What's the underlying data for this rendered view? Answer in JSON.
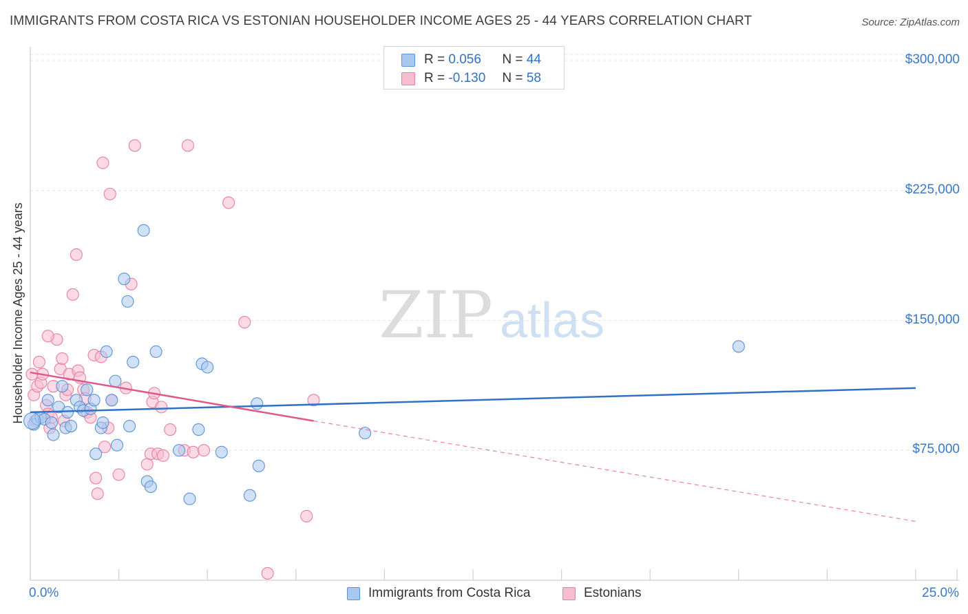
{
  "header": {
    "title": "IMMIGRANTS FROM COSTA RICA VS ESTONIAN HOUSEHOLDER INCOME AGES 25 - 44 YEARS CORRELATION CHART",
    "source": "Source: ZipAtlas.com"
  },
  "watermark": {
    "zip": "ZIP",
    "atlas": "atlas"
  },
  "stats_legend": {
    "rows": [
      {
        "r_label": "R =",
        "r_value": "0.056",
        "n_label": "N =",
        "n_value": "44",
        "color": "#a9c8f0",
        "border": "#5b93d6"
      },
      {
        "r_label": "R =",
        "r_value": "-0.130",
        "n_label": "N =",
        "n_value": "58",
        "color": "#f7bccf",
        "border": "#e87fa2"
      }
    ]
  },
  "chart_data": {
    "type": "scatter",
    "title": "IMMIGRANTS FROM COSTA RICA VS ESTONIAN HOUSEHOLDER INCOME AGES 25 - 44 YEARS CORRELATION CHART",
    "xlabel": "",
    "ylabel": "Householder Income Ages 25 - 44 years",
    "xlim": [
      0,
      25
    ],
    "ylim": [
      0,
      308000
    ],
    "x_tick_labels": [
      "0.0%",
      "25.0%"
    ],
    "y_ticks": [
      75000,
      150000,
      225000,
      300000
    ],
    "y_tick_labels": [
      "$75,000",
      "$150,000",
      "$225,000",
      "$300,000"
    ],
    "grid": "horizontal dashed",
    "legend_position": "bottom",
    "series": [
      {
        "name": "Immigrants from Costa Rica",
        "color": "#a9c8f0",
        "stroke": "#5b93d6",
        "trend": {
          "x": [
            0,
            25
          ],
          "y": [
            97000,
            111000
          ],
          "color": "#2f72c4",
          "style": "solid"
        },
        "points": [
          [
            0.1,
            90000
          ],
          [
            0.2,
            93000
          ],
          [
            0.3,
            94000
          ],
          [
            0.4,
            93000
          ],
          [
            0.5,
            104000
          ],
          [
            0.6,
            91000
          ],
          [
            0.65,
            84000
          ],
          [
            0.8,
            100000
          ],
          [
            0.9,
            112000
          ],
          [
            1.0,
            88000
          ],
          [
            1.05,
            97000
          ],
          [
            1.15,
            89000
          ],
          [
            1.3,
            104000
          ],
          [
            1.4,
            100000
          ],
          [
            1.5,
            98000
          ],
          [
            1.6,
            110000
          ],
          [
            1.7,
            99000
          ],
          [
            1.8,
            104000
          ],
          [
            1.85,
            73000
          ],
          [
            2.0,
            88000
          ],
          [
            2.05,
            91000
          ],
          [
            2.15,
            132000
          ],
          [
            2.3,
            104000
          ],
          [
            2.4,
            115000
          ],
          [
            2.45,
            78000
          ],
          [
            2.65,
            174000
          ],
          [
            2.75,
            161000
          ],
          [
            2.8,
            89000
          ],
          [
            2.9,
            126000
          ],
          [
            3.2,
            202000
          ],
          [
            3.3,
            57000
          ],
          [
            3.4,
            54000
          ],
          [
            3.55,
            132000
          ],
          [
            4.2,
            75000
          ],
          [
            4.5,
            47000
          ],
          [
            4.75,
            87000
          ],
          [
            4.85,
            125000
          ],
          [
            5.0,
            123000
          ],
          [
            5.4,
            74000
          ],
          [
            6.2,
            49000
          ],
          [
            6.4,
            102000
          ],
          [
            6.45,
            66000
          ],
          [
            9.45,
            85000
          ],
          [
            20.0,
            135000
          ]
        ]
      },
      {
        "name": "Estonians",
        "color": "#f7bccf",
        "stroke": "#e87fa2",
        "trend": {
          "x": [
            0,
            8.0
          ],
          "y": [
            120000,
            92000
          ],
          "color": "#e0588a",
          "style": "solid",
          "extension": {
            "x": [
              8.0,
              25
            ],
            "y": [
              92000,
              34000
            ],
            "style": "dashed"
          }
        },
        "points": [
          [
            0.1,
            107000
          ],
          [
            0.15,
            92000
          ],
          [
            0.2,
            112000
          ],
          [
            0.25,
            126000
          ],
          [
            0.3,
            114000
          ],
          [
            0.35,
            119000
          ],
          [
            0.45,
            101000
          ],
          [
            0.5,
            96000
          ],
          [
            0.55,
            88000
          ],
          [
            0.6,
            94000
          ],
          [
            0.65,
            112000
          ],
          [
            0.75,
            139000
          ],
          [
            0.85,
            122000
          ],
          [
            0.9,
            128000
          ],
          [
            0.95,
            92000
          ],
          [
            1.0,
            107000
          ],
          [
            1.05,
            110000
          ],
          [
            1.1,
            119000
          ],
          [
            1.2,
            165000
          ],
          [
            1.3,
            188000
          ],
          [
            1.35,
            121000
          ],
          [
            1.4,
            117000
          ],
          [
            1.5,
            110000
          ],
          [
            1.55,
            105000
          ],
          [
            1.6,
            97000
          ],
          [
            1.7,
            94000
          ],
          [
            1.8,
            130000
          ],
          [
            1.85,
            59000
          ],
          [
            1.9,
            50000
          ],
          [
            2.0,
            129000
          ],
          [
            2.05,
            241000
          ],
          [
            2.1,
            77000
          ],
          [
            2.2,
            88000
          ],
          [
            2.25,
            223000
          ],
          [
            2.3,
            104000
          ],
          [
            2.5,
            61000
          ],
          [
            2.7,
            111000
          ],
          [
            2.85,
            171000
          ],
          [
            2.95,
            251000
          ],
          [
            3.3,
            67000
          ],
          [
            3.4,
            73000
          ],
          [
            3.45,
            103000
          ],
          [
            3.5,
            108000
          ],
          [
            3.6,
            73000
          ],
          [
            3.7,
            100000
          ],
          [
            3.75,
            72000
          ],
          [
            3.95,
            87000
          ],
          [
            4.35,
            75000
          ],
          [
            4.45,
            251000
          ],
          [
            4.6,
            74000
          ],
          [
            4.9,
            75000
          ],
          [
            5.6,
            218000
          ],
          [
            6.05,
            149000
          ],
          [
            6.7,
            4000
          ],
          [
            7.8,
            37000
          ],
          [
            8.0,
            104000
          ],
          [
            0.05,
            119000
          ],
          [
            0.5,
            141000
          ]
        ]
      }
    ]
  },
  "legend_bottom": [
    {
      "label": "Immigrants from Costa Rica",
      "color": "#a9c8f0",
      "border": "#5b93d6"
    },
    {
      "label": "Estonians",
      "color": "#f7bccf",
      "border": "#e87fa2"
    }
  ]
}
